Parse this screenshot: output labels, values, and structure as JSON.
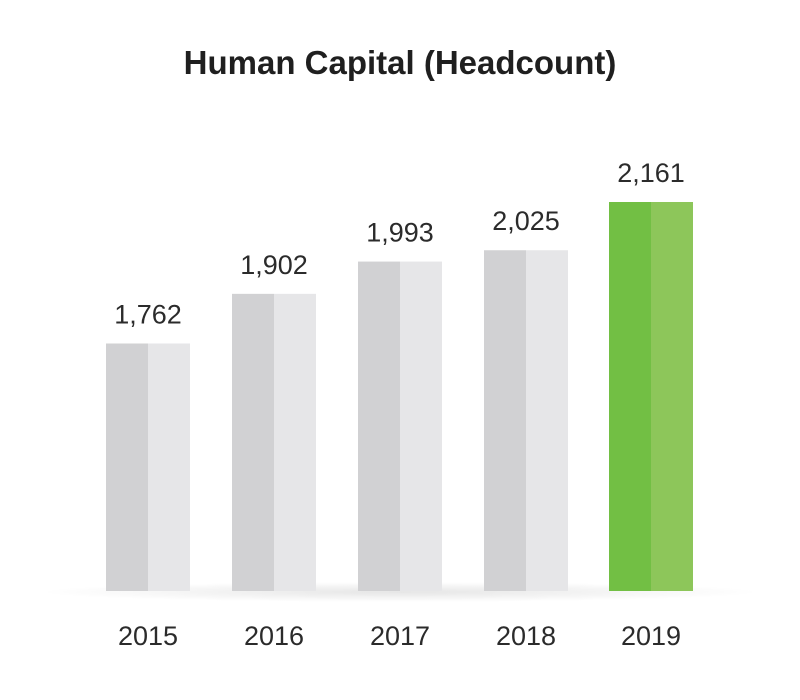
{
  "chart_data": {
    "type": "bar",
    "title": "Human Capital (Headcount)",
    "categories": [
      "2015",
      "2016",
      "2017",
      "2018",
      "2019"
    ],
    "values": [
      1762,
      1902,
      1993,
      2025,
      2161
    ],
    "value_labels": [
      "1,762",
      "1,902",
      "1,993",
      "2,025",
      "2,161"
    ],
    "xlabel": "",
    "ylabel": "",
    "grid": false,
    "highlight_index": 4,
    "colors": {
      "bar_dark": "#d1d1d3",
      "bar_light": "#e6e6e8",
      "highlight_dark": "#72bf44",
      "highlight_light": "#8dc65a",
      "text": "#2b2b2b"
    }
  }
}
